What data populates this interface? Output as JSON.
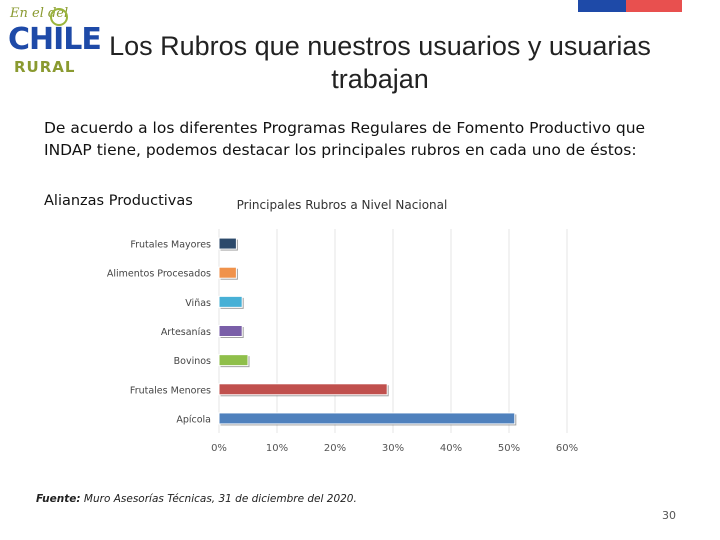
{
  "header": {
    "flag_colors": [
      "#1e4aa8",
      "#e8504f"
    ],
    "logo": {
      "top_text": "En el del",
      "main": "CHILE",
      "bottom": "RURAL",
      "colors": {
        "main": "#1e4aa8",
        "bottom": "#8a9a30"
      }
    },
    "title": "Los Rubros que nuestros usuarios y usuarias trabajan"
  },
  "intro_text": "De acuerdo a los diferentes Programas Regulares de Fomento Productivo que INDAP tiene, podemos destacar los principales rubros en cada uno de éstos:",
  "section_label": "Alianzas Productivas",
  "chart_data": {
    "type": "bar",
    "orientation": "horizontal",
    "title": "Principales Rubros a Nivel Nacional",
    "categories": [
      "Frutales Mayores",
      "Alimentos Procesados",
      "Viñas",
      "Artesanías",
      "Bovinos",
      "Frutales Menores",
      "Apícola"
    ],
    "values": [
      3,
      3,
      4,
      4,
      5,
      29,
      51
    ],
    "colors": [
      "#2d4a6b",
      "#f0924b",
      "#47b0d6",
      "#7a5fa8",
      "#8fbf4a",
      "#c0504d",
      "#4f81bd"
    ],
    "xlim": [
      0,
      60
    ],
    "xticks": [
      "0%",
      "10%",
      "20%",
      "30%",
      "40%",
      "50%",
      "60%"
    ],
    "xlabel": "",
    "ylabel": "",
    "grid": true,
    "legend": "none"
  },
  "footnote": {
    "label": "Fuente:",
    "text": " Muro Asesorías Técnicas, 31 de diciembre del 2020."
  },
  "page_number": "30"
}
